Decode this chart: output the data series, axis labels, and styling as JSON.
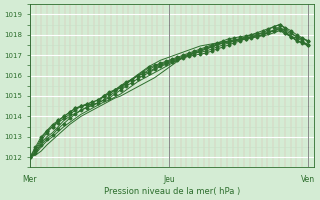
{
  "bg_color": "#d4ecd4",
  "plot_bg_color": "#d4ecd4",
  "grid_color_major": "#ffffff",
  "grid_color_minor": "#c8e0c8",
  "line_color": "#2d6e2d",
  "marker_color": "#2d6e2d",
  "ylabel_color": "#2d6e2d",
  "xlabel": "Pression niveau de la mer( hPa )",
  "ylim": [
    1011.5,
    1019.5
  ],
  "yticks": [
    1012,
    1013,
    1014,
    1015,
    1016,
    1017,
    1018,
    1019
  ],
  "day_labels": [
    "Mer",
    "Jeu",
    "Ven"
  ],
  "day_positions": [
    0,
    48,
    96
  ],
  "total_hours": 120,
  "series": [
    [
      1012.0,
      1012.3,
      1012.8,
      1013.2,
      1013.5,
      1013.8,
      1014.0,
      1014.2,
      1014.4,
      1014.5,
      1014.6,
      1014.7,
      1014.8,
      1015.0,
      1015.2,
      1015.3,
      1015.4,
      1015.6,
      1015.8,
      1016.0,
      1016.2,
      1016.4,
      1016.5,
      1016.6,
      1016.7,
      1016.8,
      1016.9,
      1017.0,
      1017.1,
      1017.2,
      1017.3,
      1017.4,
      1017.5,
      1017.6,
      1017.7,
      1017.8,
      1017.85,
      1017.9,
      1017.95,
      1018.0,
      1018.1,
      1018.2,
      1018.3,
      1018.4,
      1018.5,
      1018.3,
      1018.1,
      1017.9,
      1017.8,
      1017.7
    ],
    [
      1012.0,
      1012.5,
      1013.0,
      1013.3,
      1013.6,
      1013.8,
      1014.0,
      1014.2,
      1014.4,
      1014.5,
      1014.55,
      1014.6,
      1014.65,
      1015.0,
      1015.1,
      1015.3,
      1015.5,
      1015.6,
      1015.8,
      1016.0,
      1016.1,
      1016.2,
      1016.35,
      1016.5,
      1016.6,
      1016.7,
      1016.8,
      1016.9,
      1017.0,
      1017.1,
      1017.15,
      1017.2,
      1017.3,
      1017.4,
      1017.5,
      1017.6,
      1017.7,
      1017.8,
      1017.9,
      1018.0,
      1018.05,
      1018.1,
      1018.15,
      1018.2,
      1018.25,
      1018.1,
      1017.9,
      1017.85,
      1017.7,
      1017.5
    ],
    [
      1012.0,
      1012.4,
      1012.9,
      1013.3,
      1013.5,
      1013.7,
      1013.9,
      1014.1,
      1014.3,
      1014.5,
      1014.6,
      1014.7,
      1014.8,
      1015.0,
      1015.1,
      1015.3,
      1015.5,
      1015.7,
      1015.8,
      1016.0,
      1016.1,
      1016.3,
      1016.45,
      1016.55,
      1016.65,
      1016.75,
      1016.85,
      1016.95,
      1017.05,
      1017.15,
      1017.25,
      1017.35,
      1017.45,
      1017.55,
      1017.6,
      1017.65,
      1017.7,
      1017.75,
      1017.8,
      1017.85,
      1017.9,
      1018.0,
      1018.1,
      1018.2,
      1018.3,
      1018.1,
      1017.9,
      1017.7,
      1017.6,
      1017.5
    ],
    [
      1012.0,
      1012.2,
      1012.7,
      1013.0,
      1013.2,
      1013.5,
      1013.8,
      1014.0,
      1014.15,
      1014.3,
      1014.45,
      1014.55,
      1014.65,
      1014.8,
      1015.0,
      1015.2,
      1015.45,
      1015.65,
      1015.85,
      1016.05,
      1016.25,
      1016.45,
      1016.6,
      1016.75,
      1016.85,
      1016.95,
      1017.05,
      1017.15,
      1017.25,
      1017.35,
      1017.45,
      1017.5,
      1017.55,
      1017.6,
      1017.65,
      1017.7,
      1017.75,
      1017.8,
      1017.85,
      1017.9,
      1017.95,
      1018.0,
      1018.1,
      1018.25,
      1018.4,
      1018.15,
      1017.95,
      1017.7,
      1017.6,
      1017.45
    ],
    [
      1012.0,
      1012.2,
      1012.6,
      1012.9,
      1013.1,
      1013.4,
      1013.65,
      1013.9,
      1014.1,
      1014.3,
      1014.42,
      1014.54,
      1014.66,
      1014.8,
      1014.9,
      1015.1,
      1015.3,
      1015.5,
      1015.65,
      1015.85,
      1016.0,
      1016.15,
      1016.3,
      1016.45,
      1016.55,
      1016.65,
      1016.75,
      1016.85,
      1016.95,
      1017.0,
      1017.05,
      1017.1,
      1017.2,
      1017.3,
      1017.4,
      1017.5,
      1017.6,
      1017.7,
      1017.8,
      1017.9,
      1018.0,
      1018.1,
      1018.25,
      1018.4,
      1018.5,
      1018.35,
      1018.2,
      1018.0,
      1017.85,
      1017.7
    ],
    [
      1012.0,
      1012.15,
      1012.5,
      1012.8,
      1013.0,
      1013.25,
      1013.5,
      1013.7,
      1013.9,
      1014.1,
      1014.25,
      1014.4,
      1014.55,
      1014.7,
      1014.8,
      1014.95,
      1015.1,
      1015.3,
      1015.5,
      1015.7,
      1015.85,
      1016.0,
      1016.15,
      1016.3,
      1016.45,
      1016.6,
      1016.75,
      1016.9,
      1017.0,
      1017.1,
      1017.2,
      1017.3,
      1017.4,
      1017.5,
      1017.6,
      1017.7,
      1017.75,
      1017.8,
      1017.85,
      1017.9,
      1017.95,
      1018.0,
      1018.1,
      1018.2,
      1018.35,
      1018.2,
      1018.05,
      1017.9,
      1017.8,
      1017.7
    ],
    [
      1012.0,
      1012.1,
      1012.3,
      1012.6,
      1012.85,
      1013.1,
      1013.35,
      1013.6,
      1013.8,
      1014.0,
      1014.15,
      1014.3,
      1014.45,
      1014.6,
      1014.75,
      1014.9,
      1015.0,
      1015.15,
      1015.3,
      1015.45,
      1015.6,
      1015.75,
      1015.9,
      1016.1,
      1016.3,
      1016.5,
      1016.7,
      1016.9,
      1017.0,
      1017.1,
      1017.2,
      1017.3,
      1017.4,
      1017.5,
      1017.6,
      1017.65,
      1017.7,
      1017.75,
      1017.8,
      1017.85,
      1017.9,
      1017.95,
      1018.0,
      1018.1,
      1018.2,
      1018.05,
      1017.9,
      1017.75,
      1017.6,
      1017.55
    ]
  ],
  "marker_series_indices": [
    0,
    1,
    2,
    4
  ],
  "smooth_series_indices": [
    3,
    5,
    6
  ]
}
